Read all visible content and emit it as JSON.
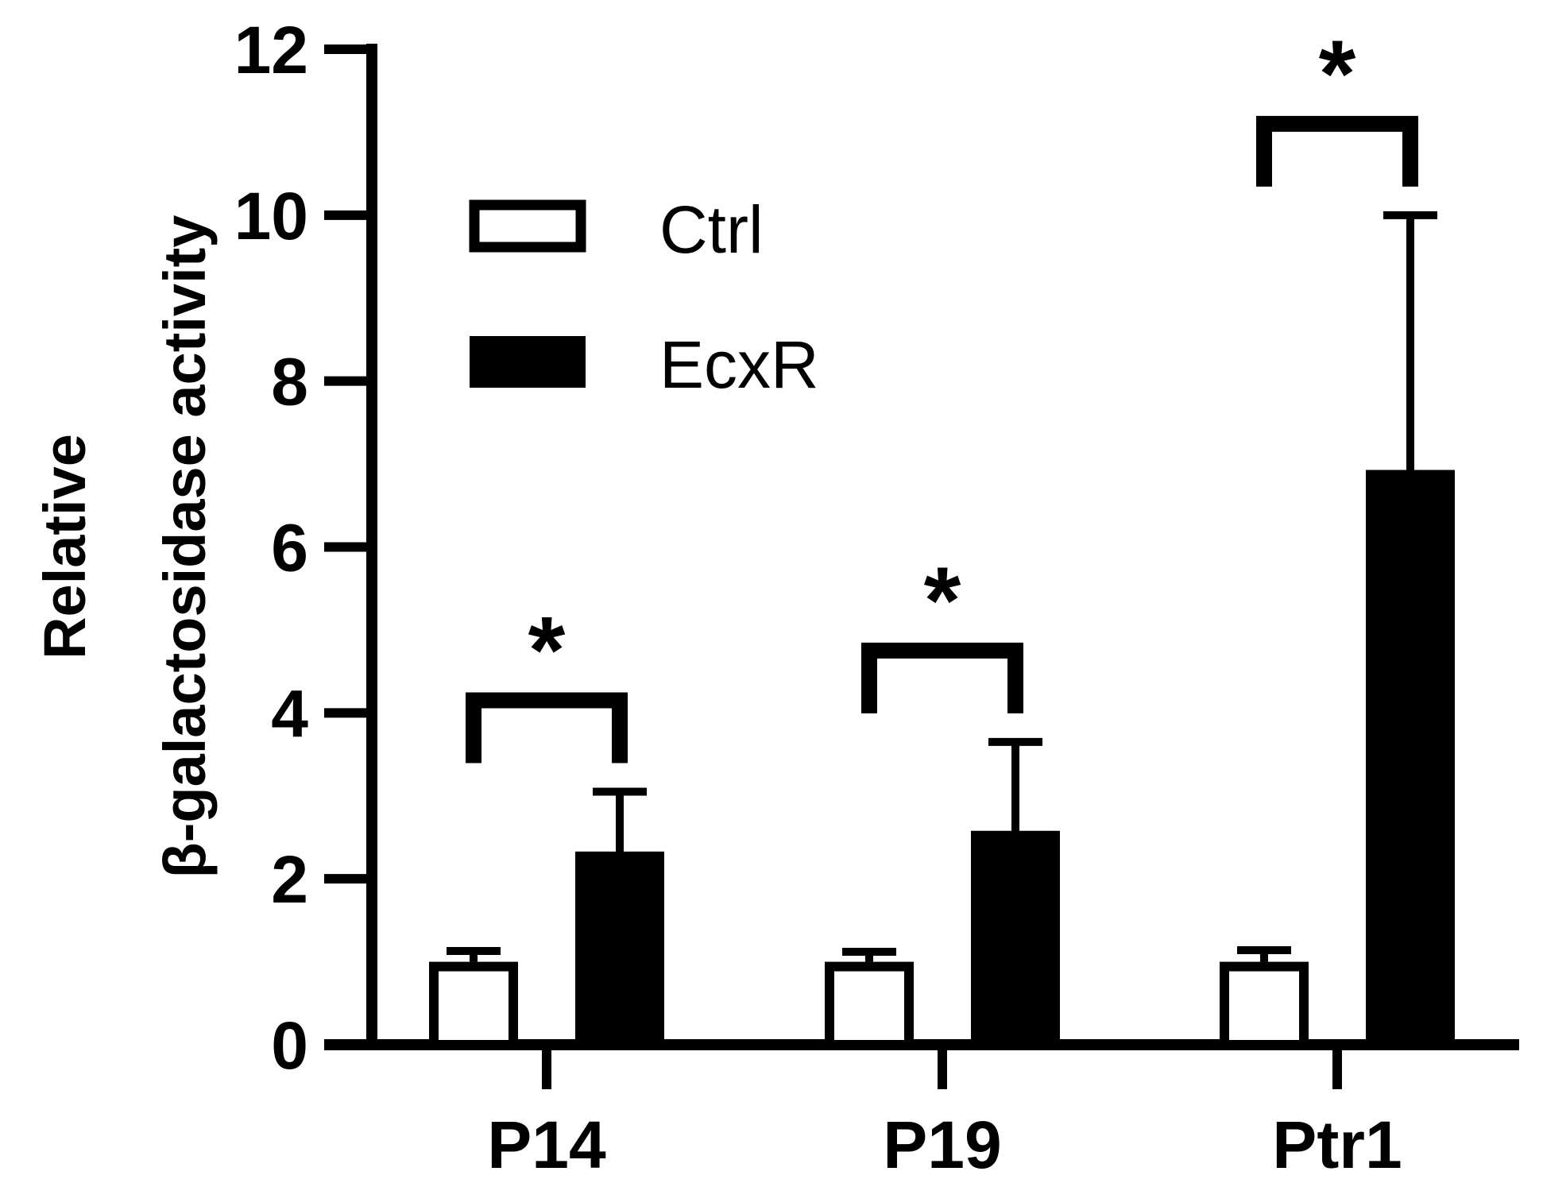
{
  "chart_data": {
    "type": "bar",
    "title": "",
    "xlabel": "",
    "ylabel_lines": [
      "Relative",
      "β-galactosidase activity"
    ],
    "ylim": [
      0,
      12
    ],
    "yticks": [
      "0",
      "2",
      "4",
      "6",
      "8",
      "10",
      "12"
    ],
    "categories": [
      "P14",
      "P19",
      "Ptr1"
    ],
    "series": [
      {
        "name": "Ctrl",
        "values": [
          1.0,
          1.0,
          1.0
        ],
        "errors": [
          0.13,
          0.12,
          0.14
        ],
        "fill": "#ffffff",
        "stroke": "#000000"
      },
      {
        "name": "EcxR",
        "values": [
          2.3,
          2.55,
          6.9
        ],
        "errors": [
          0.75,
          1.1,
          3.1
        ],
        "fill": "#000000",
        "stroke": "#000000"
      }
    ],
    "significance": [
      {
        "category": "P14",
        "label": "*"
      },
      {
        "category": "P19",
        "label": "*"
      },
      {
        "category": "Ptr1",
        "label": "*"
      }
    ],
    "legend": {
      "placement": "top-left"
    },
    "grid": false
  }
}
